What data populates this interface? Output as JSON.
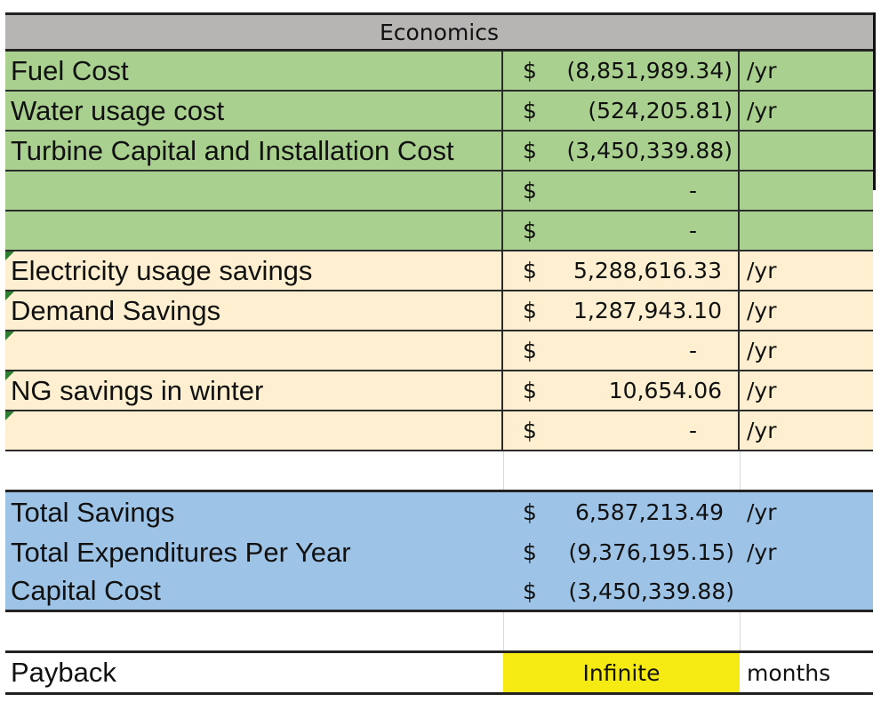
{
  "header": {
    "title": "Economics"
  },
  "expenses": [
    {
      "label": "Fuel Cost",
      "currency": "$",
      "amount": "(8,851,989.34)",
      "unit": "/yr"
    },
    {
      "label": "Water usage cost",
      "currency": "$",
      "amount": "(524,205.81)",
      "unit": "/yr"
    },
    {
      "label": "Turbine Capital and Installation Cost",
      "currency": "$",
      "amount": "(3,450,339.88)",
      "unit": ""
    },
    {
      "label": "",
      "currency": "$",
      "amount": "-",
      "unit": ""
    },
    {
      "label": "",
      "currency": "$",
      "amount": "-",
      "unit": ""
    }
  ],
  "savings": [
    {
      "label": "Electricity usage savings",
      "currency": "$",
      "amount": "5,288,616.33",
      "unit": "/yr"
    },
    {
      "label": "Demand Savings",
      "currency": "$",
      "amount": "1,287,943.10",
      "unit": "/yr"
    },
    {
      "label": "",
      "currency": "$",
      "amount": "-",
      "unit": "/yr"
    },
    {
      "label": "NG savings in winter",
      "currency": "$",
      "amount": "10,654.06",
      "unit": "/yr"
    },
    {
      "label": "",
      "currency": "$",
      "amount": "-",
      "unit": "/yr"
    }
  ],
  "totals": [
    {
      "label": "Total Savings",
      "currency": "$",
      "amount": "6,587,213.49",
      "unit": "/yr"
    },
    {
      "label": "Total Expenditures Per Year",
      "currency": "$",
      "amount": "(9,376,195.15)",
      "unit": "/yr"
    },
    {
      "label": "Capital Cost",
      "currency": "$",
      "amount": "(3,450,339.88)",
      "unit": ""
    }
  ],
  "payback": {
    "label": "Payback",
    "value": "Infinite",
    "unit": "months"
  },
  "colors": {
    "header": "#b7b4b4",
    "expenses": "#a9d08e",
    "savings": "#fdefcf",
    "totals": "#9dc3e6",
    "payback_highlight": "#f5ea12",
    "comment_marker": "#2e7d32"
  }
}
